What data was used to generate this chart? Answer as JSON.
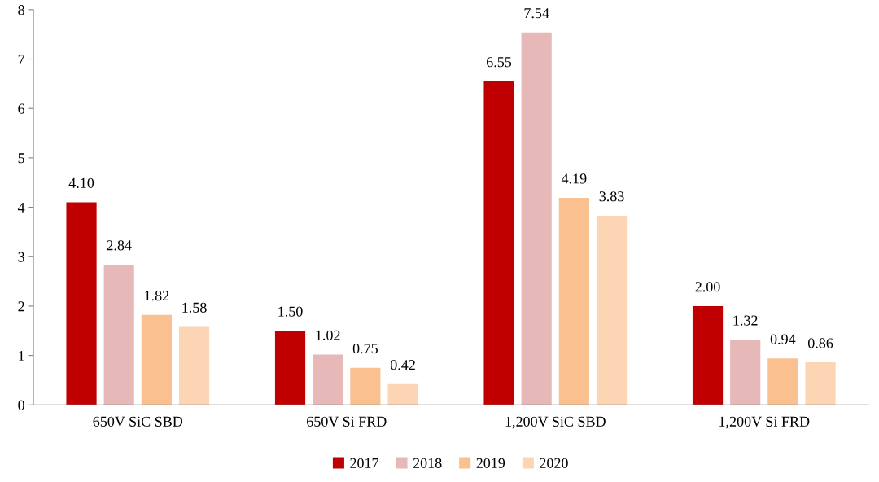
{
  "chart_data": {
    "type": "bar",
    "categories": [
      "650V SiC SBD",
      "650V Si FRD",
      "1,200V SiC SBD",
      "1,200V Si FRD"
    ],
    "series": [
      {
        "name": "2017",
        "color": "#c00000",
        "values": [
          4.1,
          1.5,
          6.55,
          2.0
        ],
        "value_labels": [
          "4.10",
          "1.50",
          "6.55",
          "2.00"
        ]
      },
      {
        "name": "2018",
        "color": "#e6b9b8",
        "values": [
          2.84,
          1.02,
          7.54,
          1.32
        ],
        "value_labels": [
          "2.84",
          "1.02",
          "7.54",
          "1.32"
        ]
      },
      {
        "name": "2019",
        "color": "#fac090",
        "values": [
          1.82,
          0.75,
          4.19,
          0.94
        ],
        "value_labels": [
          "1.82",
          "0.75",
          "4.19",
          "0.94"
        ]
      },
      {
        "name": "2020",
        "color": "#fcd5b5",
        "values": [
          1.58,
          0.42,
          3.83,
          0.86
        ],
        "value_labels": [
          "1.58",
          "0.42",
          "3.83",
          "0.86"
        ]
      }
    ],
    "ylim": [
      0,
      8
    ],
    "yticks": [
      0,
      1,
      2,
      3,
      4,
      5,
      6,
      7,
      8
    ],
    "grid": false,
    "legend": "bottom"
  }
}
